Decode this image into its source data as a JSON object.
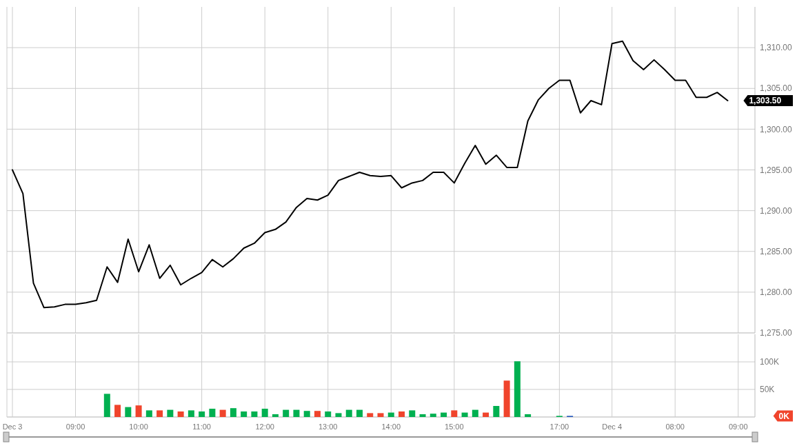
{
  "chart_data": [
    {
      "type": "line",
      "categories": [
        null,
        null,
        null,
        null,
        null,
        null,
        null,
        null,
        null,
        null,
        null,
        null,
        null,
        null,
        null,
        null,
        null,
        null,
        null,
        null,
        null,
        null,
        null,
        null,
        null,
        null,
        null,
        null,
        null,
        null,
        null,
        null,
        null,
        null,
        null,
        null,
        null,
        null,
        null,
        null,
        null,
        null,
        null,
        null,
        null,
        null,
        null,
        null,
        null,
        null,
        null,
        null,
        null,
        null,
        null,
        null,
        null,
        null,
        null,
        null,
        null,
        null,
        null,
        null,
        null,
        null,
        null,
        null,
        null,
        null,
        null
      ],
      "series": [
        {
          "color": "#000000",
          "values": [
            1295.0,
            1292.1,
            1281.1,
            1278.1,
            1278.2,
            1278.5,
            1278.5,
            1278.7,
            1279.0,
            1283.1,
            1281.2,
            1286.5,
            1282.5,
            1285.8,
            1281.7,
            1283.3,
            1280.9,
            1281.7,
            1282.4,
            1284.0,
            1283.1,
            1284.1,
            1285.4,
            1286.0,
            1287.3,
            1287.7,
            1288.6,
            1290.4,
            1291.5,
            1291.3,
            1291.9,
            1293.7,
            1294.2,
            1294.7,
            1294.3,
            1294.2,
            1294.3,
            1292.8,
            1293.4,
            1293.7,
            1294.7,
            1294.7,
            1293.4,
            1295.8,
            1298.0,
            1295.7,
            1296.8,
            1295.3,
            1295.3,
            1301.0,
            1303.6,
            1305.0,
            1306.0,
            1306.0,
            1302.0,
            1303.5,
            1303.0,
            1310.5,
            1310.8,
            1308.4,
            1307.3,
            1308.5,
            1307.3,
            1306.0,
            1306.0,
            1303.9,
            1303.9,
            1304.5,
            1303.5,
            null,
            null
          ]
        }
      ],
      "ylim": [
        1275,
        1315
      ],
      "yticks": [
        {
          "value": 1275,
          "label": "1,275.00"
        },
        {
          "value": 1280,
          "label": "1,280.00"
        },
        {
          "value": 1285,
          "label": "1,285.00"
        },
        {
          "value": 1290,
          "label": "1,290.00"
        },
        {
          "value": 1295,
          "label": "1,295.00"
        },
        {
          "value": 1300,
          "label": "1,300.00"
        },
        {
          "value": 1305,
          "label": "1,305.00"
        },
        {
          "value": 1310,
          "label": "1,310.00"
        }
      ],
      "grid": true,
      "tick_labels": "y",
      "annotations": [
        "1,303.50"
      ]
    },
    {
      "type": "bar",
      "categories": [
        "Dec 3",
        null,
        null,
        null,
        null,
        null,
        "09:00",
        null,
        null,
        null,
        null,
        null,
        "10:00",
        null,
        null,
        null,
        null,
        null,
        "11:00",
        null,
        null,
        null,
        null,
        null,
        "12:00",
        null,
        null,
        null,
        null,
        null,
        "13:00",
        null,
        null,
        null,
        null,
        null,
        "14:00",
        null,
        null,
        null,
        null,
        null,
        "15:00",
        null,
        null,
        null,
        null,
        null,
        null,
        null,
        null,
        null,
        "17:00",
        null,
        null,
        null,
        null,
        "Dec 4",
        null,
        null,
        null,
        null,
        null,
        "08:00",
        null,
        null,
        null,
        null,
        null,
        "09:00",
        null
      ],
      "series": [
        {
          "values": [
            null,
            null,
            null,
            null,
            null,
            null,
            null,
            null,
            null,
            42000,
            22000,
            18000,
            21000,
            12000,
            12000,
            13000,
            10000,
            12000,
            10000,
            15000,
            13000,
            16000,
            10000,
            10000,
            15000,
            5000,
            13000,
            13000,
            11000,
            11000,
            10000,
            7000,
            13000,
            13000,
            7000,
            7000,
            8000,
            10000,
            12000,
            5000,
            6000,
            8000,
            12000,
            8000,
            13000,
            8000,
            20000,
            66000,
            101000,
            5000,
            null,
            null,
            2000,
            2000,
            null,
            null,
            null,
            null,
            null,
            null,
            null,
            null,
            null,
            null,
            null,
            null,
            null,
            null,
            null,
            null,
            null
          ],
          "colors": [
            null,
            null,
            null,
            null,
            null,
            null,
            null,
            null,
            null,
            "#00b050",
            "#f0442c",
            "#00b050",
            "#f0442c",
            "#00b050",
            "#f0442c",
            "#00b050",
            "#f0442c",
            "#00b050",
            "#00b050",
            "#00b050",
            "#f0442c",
            "#00b050",
            "#00b050",
            "#00b050",
            "#00b050",
            "#00b050",
            "#00b050",
            "#00b050",
            "#00b050",
            "#f0442c",
            "#00b050",
            "#00b050",
            "#00b050",
            "#00b050",
            "#f0442c",
            "#f0442c",
            "#00b050",
            "#f0442c",
            "#00b050",
            "#00b050",
            "#00b050",
            "#00b050",
            "#f0442c",
            "#00b050",
            "#00b050",
            "#f0442c",
            "#00b050",
            "#f0442c",
            "#00b050",
            "#00b050",
            null,
            null,
            "#00b050",
            "#2255bb",
            null,
            null,
            null,
            null,
            null,
            null,
            null,
            null,
            null,
            null,
            null,
            null,
            null,
            null,
            null,
            null,
            null
          ]
        }
      ],
      "ylim": [
        0,
        150000
      ],
      "yticks": [
        {
          "value": 0,
          "label": null
        },
        {
          "value": 50000,
          "label": "50K"
        },
        {
          "value": 100000,
          "label": "100K"
        }
      ],
      "grid": true,
      "annotations": [
        "0K"
      ]
    }
  ]
}
